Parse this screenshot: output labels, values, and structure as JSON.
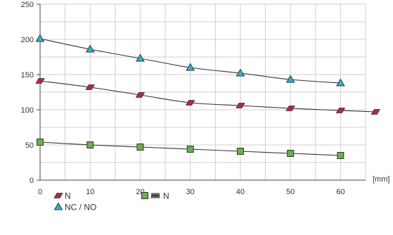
{
  "chart_data": {
    "type": "line",
    "x_unit": "[mm]",
    "x_ticks": [
      0,
      10,
      20,
      30,
      40,
      50,
      60
    ],
    "y_ticks": [
      0,
      50,
      100,
      150,
      200,
      250
    ],
    "xlim": [
      0,
      65
    ],
    "ylim": [
      0,
      250
    ],
    "grid": true,
    "legend_placement": "bottom-left",
    "series": [
      {
        "name": "N",
        "marker": "parallelogram",
        "color": "#b5264a",
        "x": [
          0,
          10,
          20,
          30,
          40,
          50,
          60,
          67
        ],
        "y": [
          141,
          132,
          121,
          110,
          106,
          102,
          99,
          97
        ]
      },
      {
        "name": "NC / NO",
        "marker": "triangle",
        "color": "#2db3d6",
        "x": [
          0,
          10,
          20,
          30,
          40,
          50,
          60
        ],
        "y": [
          201,
          186,
          173,
          160,
          152,
          143,
          138
        ]
      },
      {
        "name": "N",
        "prefix_icon": "spring-icon",
        "marker": "square",
        "color": "#6ab04c",
        "x": [
          0,
          10,
          20,
          30,
          40,
          50,
          60
        ],
        "y": [
          54,
          50,
          47,
          44,
          41,
          38,
          35
        ]
      }
    ]
  }
}
